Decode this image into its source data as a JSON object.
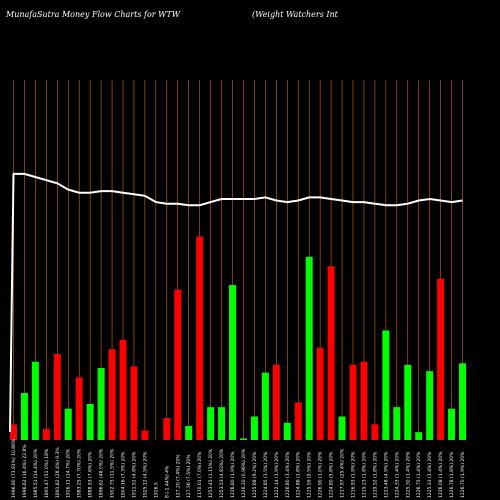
{
  "header": {
    "title": "MunafaSutra  Money Flow  Charts for WTW",
    "company": "(Weight Watchers Int"
  },
  "chart_data": {
    "type": "bar",
    "grid": true,
    "colors": {
      "up": "#00ff00",
      "down": "#ff0000",
      "grid": "#d2691e",
      "line": "#ffffff",
      "background": "#000000"
    },
    "categories": [
      "1996.90 (73.91%) 10.66%",
      "1996.62 (16.4%) 22.8%",
      "1985.51 (14.4%) 20%",
      "1891.47 (51.0%) 18%",
      "1891.82 (28.4%) 9.3%",
      "1926.11 (14.7%) 20%",
      "1983.25 (7.70%) 20%",
      "1888.93 (7.6%) 20%",
      "1896.62 (48.0%) 20%",
      "1902.75 (11.5%) 20%",
      "1904.16 (7.3%) 20%",
      "1911.52 (4.8%) 20%",
      "1925.12 (4.5%) 20%",
      "1926.5",
      "8 (-1.44%) 4%",
      "127.20 (7.4%) 20%",
      "127.56 (7.5%) 20%",
      "1170.01 (7.0%) 20%",
      "1253.45 (1.15%) 20%",
      "1253.53 (4.83%) 20%",
      "1226.80 (1.9%) 20%",
      "1226.20 (0.96%) 20%",
      "1225.68 (9.2%) 20%",
      "1224.85 (3.5%) 20%",
      "1222.14 (1.9%) 20%",
      "1226.80 (3.4%) 20%",
      "1224.86 (1.8%) 20%",
      "1225.59 (9.5%) 20%",
      "1226.90 (1.0%) 20%",
      "1224.80 (5.8%) 20%",
      "1217.97 (25.4%) 20%",
      "1216.93 (1.9%) 20%",
      "1215.23 (1.8%) 20%",
      "1219.52 (1.8%) 20%",
      "1223.48 (4.9%) 20%",
      "1224.33 (1.4%) 20%",
      "1225.30 (1.4%) 20%",
      "1226.75 (1.4%) 20%",
      "1225.33 (1.4%) 20%",
      "1226.08 (1.4%) 20%",
      "1226.78 (1.8%) 20%",
      "1226.70 (1.9%) 20%"
    ],
    "values": [
      10,
      30,
      50,
      7,
      55,
      20,
      40,
      23,
      46,
      58,
      64,
      47,
      6,
      1,
      14,
      96,
      9,
      130,
      21,
      21,
      99,
      1,
      15,
      43,
      48,
      11,
      24,
      117,
      59,
      111,
      15,
      48,
      50,
      10,
      70,
      21,
      48,
      5,
      44,
      103,
      20,
      49
    ],
    "direction": [
      "down",
      "up",
      "up",
      "down",
      "down",
      "up",
      "down",
      "up",
      "up",
      "down",
      "down",
      "down",
      "down",
      "none",
      "down",
      "down",
      "up",
      "down",
      "up",
      "up",
      "up",
      "up",
      "up",
      "up",
      "down",
      "up",
      "down",
      "up",
      "down",
      "down",
      "up",
      "down",
      "down",
      "down",
      "up",
      "up",
      "up",
      "up",
      "up",
      "down",
      "up",
      "up"
    ],
    "line": [
      170,
      170,
      168,
      166,
      164,
      160,
      158,
      158,
      159,
      159,
      158,
      157,
      156,
      152,
      151,
      151,
      150,
      150,
      152,
      154,
      154,
      154,
      154,
      155,
      153,
      152,
      153,
      155,
      155,
      154,
      153,
      152,
      152,
      151,
      150,
      150,
      151,
      153,
      154,
      153,
      152,
      153
    ],
    "ylim": [
      0,
      230
    ]
  }
}
